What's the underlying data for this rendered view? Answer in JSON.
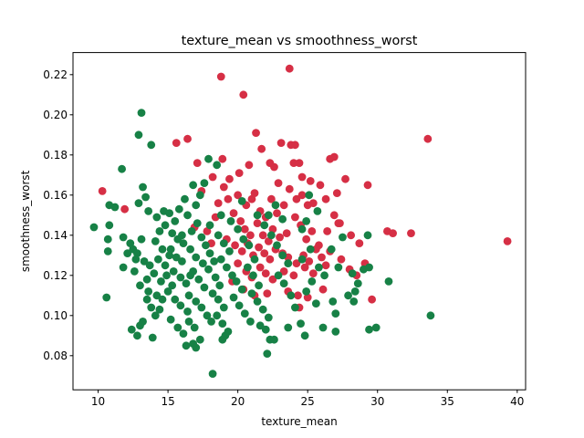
{
  "chart_data": {
    "type": "scatter",
    "title": "texture_mean vs smoothness_worst",
    "xlabel": "texture_mean",
    "ylabel": "smoothness_worst",
    "xlim": [
      8.2,
      40.6
    ],
    "ylim": [
      0.063,
      0.231
    ],
    "xticks": [
      10,
      15,
      20,
      25,
      30,
      35,
      40
    ],
    "yticks": [
      0.08,
      0.1,
      0.12,
      0.14,
      0.16,
      0.18,
      0.2,
      0.22
    ],
    "grid": false,
    "legend": "none",
    "series": [
      {
        "color": "#d62f45",
        "points": [
          [
            23.7,
            0.223
          ],
          [
            18.8,
            0.219
          ],
          [
            20.4,
            0.21
          ],
          [
            33.6,
            0.188
          ],
          [
            39.3,
            0.137
          ],
          [
            10.3,
            0.162
          ],
          [
            11.9,
            0.153
          ],
          [
            15.6,
            0.186
          ],
          [
            16.4,
            0.188
          ],
          [
            17.1,
            0.176
          ],
          [
            18.2,
            0.169
          ],
          [
            18.9,
            0.178
          ],
          [
            19.4,
            0.168
          ],
          [
            20.1,
            0.171
          ],
          [
            20.8,
            0.175
          ],
          [
            21.3,
            0.191
          ],
          [
            21.7,
            0.183
          ],
          [
            22.3,
            0.176
          ],
          [
            22.6,
            0.174
          ],
          [
            22.9,
            0.166
          ],
          [
            23.8,
            0.185
          ],
          [
            24.1,
            0.185
          ],
          [
            24.0,
            0.176
          ],
          [
            24.6,
            0.169
          ],
          [
            25.2,
            0.167
          ],
          [
            26.6,
            0.178
          ],
          [
            26.9,
            0.179
          ],
          [
            27.7,
            0.168
          ],
          [
            29.3,
            0.165
          ],
          [
            23.1,
            0.186
          ],
          [
            24.4,
            0.176
          ],
          [
            19.0,
            0.164
          ],
          [
            20.0,
            0.16
          ],
          [
            20.6,
            0.155
          ],
          [
            21.0,
            0.158
          ],
          [
            21.2,
            0.161
          ],
          [
            21.6,
            0.152
          ],
          [
            22.0,
            0.149
          ],
          [
            22.4,
            0.158
          ],
          [
            22.8,
            0.151
          ],
          [
            23.3,
            0.155
          ],
          [
            23.7,
            0.163
          ],
          [
            24.2,
            0.158
          ],
          [
            24.6,
            0.16
          ],
          [
            25.0,
            0.155
          ],
          [
            25.4,
            0.156
          ],
          [
            25.9,
            0.165
          ],
          [
            26.3,
            0.158
          ],
          [
            27.1,
            0.161
          ],
          [
            26.9,
            0.15
          ],
          [
            27.2,
            0.146
          ],
          [
            19.7,
            0.151
          ],
          [
            20.2,
            0.147
          ],
          [
            20.5,
            0.143
          ],
          [
            20.9,
            0.14
          ],
          [
            21.4,
            0.146
          ],
          [
            21.8,
            0.14
          ],
          [
            22.2,
            0.137
          ],
          [
            22.5,
            0.143
          ],
          [
            23.0,
            0.139
          ],
          [
            23.5,
            0.141
          ],
          [
            24.1,
            0.149
          ],
          [
            24.5,
            0.145
          ],
          [
            24.9,
            0.138
          ],
          [
            25.3,
            0.142
          ],
          [
            25.8,
            0.135
          ],
          [
            26.4,
            0.142
          ],
          [
            27.3,
            0.146
          ],
          [
            28.1,
            0.14
          ],
          [
            28.7,
            0.136
          ],
          [
            30.7,
            0.142
          ],
          [
            31.1,
            0.141
          ],
          [
            32.4,
            0.141
          ],
          [
            19.2,
            0.138
          ],
          [
            19.8,
            0.135
          ],
          [
            20.3,
            0.132
          ],
          [
            20.7,
            0.136
          ],
          [
            21.1,
            0.13
          ],
          [
            21.5,
            0.134
          ],
          [
            21.9,
            0.131
          ],
          [
            22.3,
            0.128
          ],
          [
            22.7,
            0.133
          ],
          [
            23.2,
            0.131
          ],
          [
            23.6,
            0.129
          ],
          [
            24.2,
            0.126
          ],
          [
            24.7,
            0.13
          ],
          [
            25.1,
            0.127
          ],
          [
            25.6,
            0.133
          ],
          [
            26.0,
            0.129
          ],
          [
            26.6,
            0.132
          ],
          [
            27.4,
            0.128
          ],
          [
            28.0,
            0.123
          ],
          [
            29.1,
            0.126
          ],
          [
            20.0,
            0.126
          ],
          [
            20.6,
            0.122
          ],
          [
            21.0,
            0.119
          ],
          [
            21.6,
            0.124
          ],
          [
            22.0,
            0.121
          ],
          [
            22.5,
            0.118
          ],
          [
            23.3,
            0.122
          ],
          [
            24.0,
            0.12
          ],
          [
            24.8,
            0.124
          ],
          [
            25.4,
            0.121
          ],
          [
            26.3,
            0.125
          ],
          [
            19.6,
            0.117
          ],
          [
            20.4,
            0.113
          ],
          [
            21.2,
            0.11
          ],
          [
            22.1,
            0.111
          ],
          [
            23.6,
            0.112
          ],
          [
            24.3,
            0.11
          ],
          [
            25.0,
            0.109
          ],
          [
            26.1,
            0.113
          ],
          [
            28.5,
            0.12
          ],
          [
            29.6,
            0.108
          ],
          [
            24.4,
            0.104
          ],
          [
            17.4,
            0.162
          ],
          [
            18.6,
            0.156
          ],
          [
            18.4,
            0.149
          ],
          [
            19.3,
            0.158
          ],
          [
            17.8,
            0.142
          ],
          [
            18.1,
            0.136
          ],
          [
            16.9,
            0.144
          ]
        ]
      },
      {
        "color": "#178146",
        "points": [
          [
            13.1,
            0.201
          ],
          [
            12.9,
            0.19
          ],
          [
            13.8,
            0.185
          ],
          [
            11.7,
            0.173
          ],
          [
            13.2,
            0.164
          ],
          [
            13.4,
            0.159
          ],
          [
            12.9,
            0.156
          ],
          [
            13.6,
            0.152
          ],
          [
            10.8,
            0.155
          ],
          [
            11.2,
            0.154
          ],
          [
            9.7,
            0.144
          ],
          [
            10.8,
            0.145
          ],
          [
            10.7,
            0.138
          ],
          [
            10.7,
            0.132
          ],
          [
            11.8,
            0.139
          ],
          [
            12.3,
            0.136
          ],
          [
            12.5,
            0.133
          ],
          [
            12.8,
            0.131
          ],
          [
            13.1,
            0.138
          ],
          [
            12.1,
            0.131
          ],
          [
            12.7,
            0.128
          ],
          [
            13.3,
            0.127
          ],
          [
            11.8,
            0.124
          ],
          [
            12.6,
            0.122
          ],
          [
            13.5,
            0.118
          ],
          [
            10.6,
            0.109
          ],
          [
            13.0,
            0.115
          ],
          [
            13.6,
            0.112
          ],
          [
            12.4,
            0.093
          ],
          [
            12.8,
            0.09
          ],
          [
            13.2,
            0.097
          ],
          [
            13.0,
            0.095
          ],
          [
            13.9,
            0.089
          ],
          [
            14.1,
            0.1
          ],
          [
            14.4,
            0.103
          ],
          [
            14.2,
            0.11
          ],
          [
            14.5,
            0.117
          ],
          [
            14.0,
            0.121
          ],
          [
            14.3,
            0.128
          ],
          [
            14.6,
            0.133
          ],
          [
            14.1,
            0.137
          ],
          [
            14.4,
            0.142
          ],
          [
            14.8,
            0.145
          ],
          [
            14.2,
            0.149
          ],
          [
            14.7,
            0.152
          ],
          [
            15.1,
            0.151
          ],
          [
            15.5,
            0.147
          ],
          [
            15.8,
            0.153
          ],
          [
            16.2,
            0.158
          ],
          [
            15.3,
            0.141
          ],
          [
            15.7,
            0.138
          ],
          [
            16.1,
            0.136
          ],
          [
            15.2,
            0.133
          ],
          [
            15.6,
            0.129
          ],
          [
            16.0,
            0.127
          ],
          [
            15.4,
            0.122
          ],
          [
            15.9,
            0.119
          ],
          [
            16.3,
            0.116
          ],
          [
            15.0,
            0.112
          ],
          [
            15.5,
            0.108
          ],
          [
            15.9,
            0.105
          ],
          [
            16.4,
            0.102
          ],
          [
            15.2,
            0.098
          ],
          [
            15.7,
            0.094
          ],
          [
            16.1,
            0.091
          ],
          [
            16.5,
            0.097
          ],
          [
            16.9,
            0.094
          ],
          [
            17.3,
            0.088
          ],
          [
            16.3,
            0.085
          ],
          [
            16.8,
            0.086
          ],
          [
            17.0,
            0.084
          ],
          [
            18.2,
            0.071
          ],
          [
            19.1,
            0.09
          ],
          [
            18.9,
            0.088
          ],
          [
            16.7,
            0.142
          ],
          [
            17.1,
            0.146
          ],
          [
            17.4,
            0.139
          ],
          [
            16.6,
            0.133
          ],
          [
            17.0,
            0.129
          ],
          [
            17.5,
            0.126
          ],
          [
            16.8,
            0.122
          ],
          [
            17.2,
            0.118
          ],
          [
            17.6,
            0.114
          ],
          [
            16.5,
            0.11
          ],
          [
            17.0,
            0.107
          ],
          [
            17.4,
            0.104
          ],
          [
            17.8,
            0.1
          ],
          [
            18.1,
            0.097
          ],
          [
            17.7,
            0.135
          ],
          [
            18.0,
            0.131
          ],
          [
            18.3,
            0.127
          ],
          [
            17.9,
            0.123
          ],
          [
            18.4,
            0.119
          ],
          [
            18.7,
            0.115
          ],
          [
            18.2,
            0.111
          ],
          [
            18.6,
            0.108
          ],
          [
            19.0,
            0.104
          ],
          [
            18.5,
            0.1
          ],
          [
            18.9,
            0.096
          ],
          [
            19.3,
            0.092
          ],
          [
            18.6,
            0.14
          ],
          [
            19.0,
            0.136
          ],
          [
            19.4,
            0.132
          ],
          [
            18.8,
            0.128
          ],
          [
            19.2,
            0.124
          ],
          [
            19.6,
            0.12
          ],
          [
            19.9,
            0.117
          ],
          [
            20.3,
            0.113
          ],
          [
            19.7,
            0.109
          ],
          [
            20.1,
            0.105
          ],
          [
            20.5,
            0.101
          ],
          [
            20.9,
            0.097
          ],
          [
            17.3,
            0.16
          ],
          [
            16.8,
            0.165
          ],
          [
            17.9,
            0.178
          ],
          [
            18.5,
            0.175
          ],
          [
            17.6,
            0.166
          ],
          [
            17.0,
            0.155
          ],
          [
            16.4,
            0.15
          ],
          [
            18.0,
            0.145
          ],
          [
            18.8,
            0.15
          ],
          [
            19.5,
            0.147
          ],
          [
            20.0,
            0.143
          ],
          [
            20.4,
            0.138
          ],
          [
            20.8,
            0.135
          ],
          [
            21.2,
            0.128
          ],
          [
            20.7,
            0.124
          ],
          [
            21.1,
            0.12
          ],
          [
            21.5,
            0.115
          ],
          [
            21.0,
            0.111
          ],
          [
            21.4,
            0.107
          ],
          [
            21.8,
            0.103
          ],
          [
            22.2,
            0.099
          ],
          [
            21.6,
            0.095
          ],
          [
            22.0,
            0.093
          ],
          [
            22.3,
            0.088
          ],
          [
            22.1,
            0.081
          ],
          [
            22.6,
            0.088
          ],
          [
            21.4,
            0.15
          ],
          [
            21.9,
            0.145
          ],
          [
            22.4,
            0.14
          ],
          [
            22.8,
            0.135
          ],
          [
            23.2,
            0.13
          ],
          [
            23.6,
            0.126
          ],
          [
            22.9,
            0.12
          ],
          [
            23.3,
            0.116
          ],
          [
            23.8,
            0.11
          ],
          [
            24.1,
            0.104
          ],
          [
            23.6,
            0.094
          ],
          [
            24.5,
            0.096
          ],
          [
            24.8,
            0.09
          ],
          [
            26.1,
            0.094
          ],
          [
            27.0,
            0.092
          ],
          [
            25.6,
            0.106
          ],
          [
            24.9,
            0.112
          ],
          [
            25.3,
            0.117
          ],
          [
            25.8,
            0.124
          ],
          [
            26.2,
            0.12
          ],
          [
            26.7,
            0.133
          ],
          [
            27.5,
            0.139
          ],
          [
            27.2,
            0.124
          ],
          [
            28.2,
            0.121
          ],
          [
            28.6,
            0.116
          ],
          [
            29.0,
            0.123
          ],
          [
            29.4,
            0.124
          ],
          [
            27.9,
            0.11
          ],
          [
            28.3,
            0.107
          ],
          [
            28.4,
            0.112
          ],
          [
            29.3,
            0.14
          ],
          [
            26.8,
            0.107
          ],
          [
            27.0,
            0.101
          ],
          [
            29.4,
            0.093
          ],
          [
            29.9,
            0.094
          ],
          [
            30.8,
            0.117
          ],
          [
            33.8,
            0.1
          ],
          [
            24.6,
            0.128
          ],
          [
            25.2,
            0.133
          ],
          [
            25.7,
            0.152
          ],
          [
            24.9,
            0.147
          ],
          [
            24.6,
            0.143
          ],
          [
            25.1,
            0.16
          ],
          [
            23.2,
            0.148
          ],
          [
            22.7,
            0.155
          ],
          [
            22.2,
            0.15
          ],
          [
            20.3,
            0.157
          ],
          [
            14.8,
            0.125
          ],
          [
            15.1,
            0.13
          ],
          [
            13.7,
            0.125
          ],
          [
            14.9,
            0.12
          ],
          [
            13.5,
            0.108
          ],
          [
            13.8,
            0.104
          ],
          [
            14.6,
            0.108
          ],
          [
            15.3,
            0.115
          ],
          [
            16.0,
            0.14
          ],
          [
            16.6,
            0.12
          ]
        ]
      }
    ]
  }
}
